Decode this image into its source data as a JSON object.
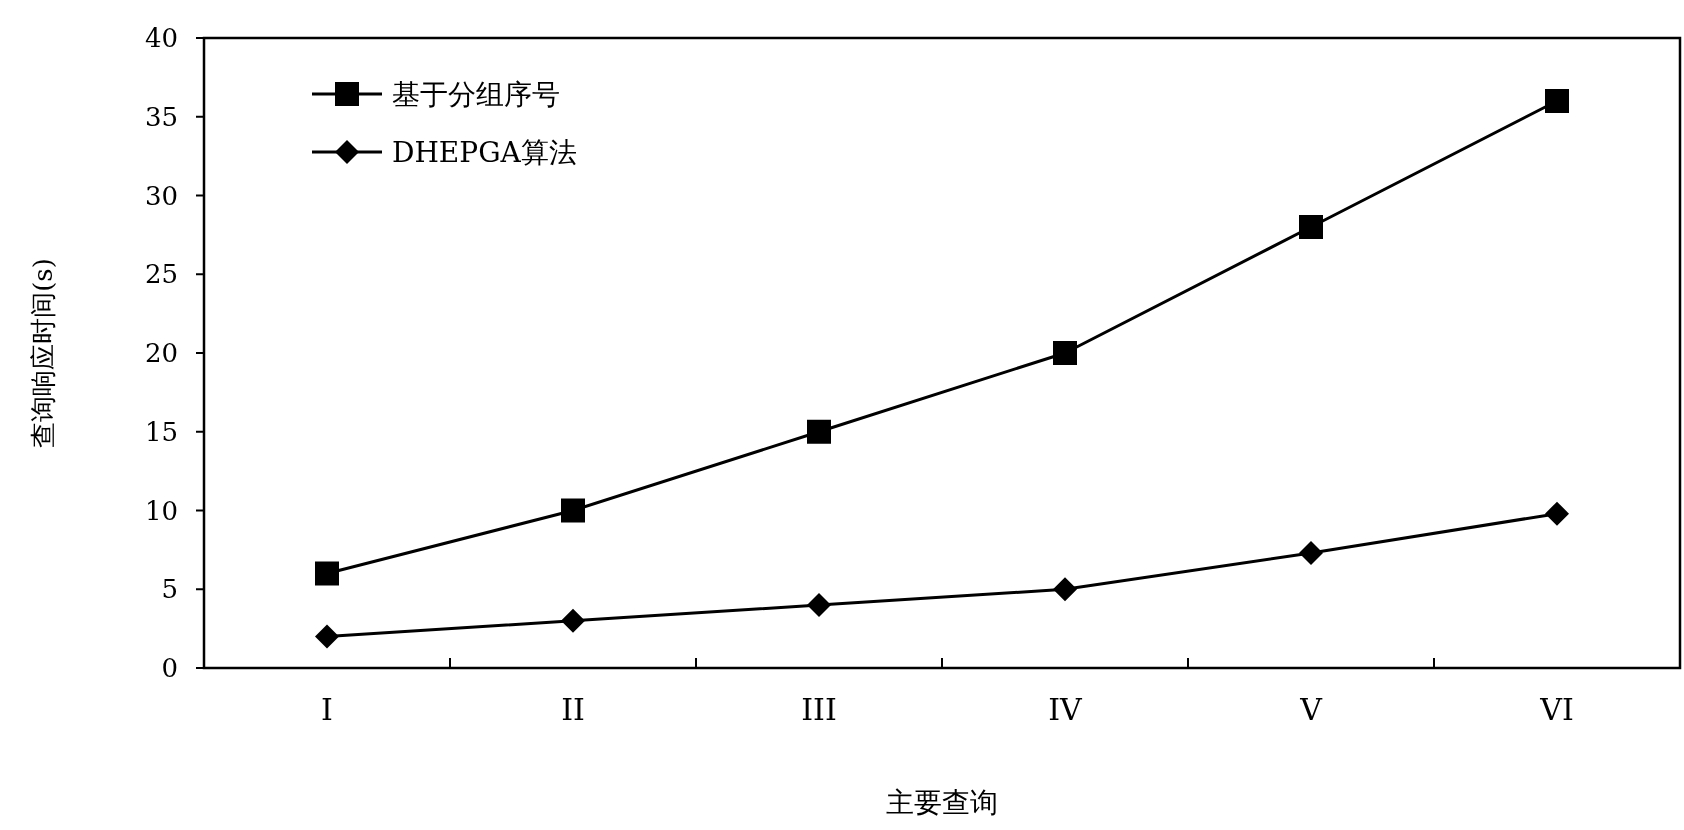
{
  "chart_data": {
    "type": "line",
    "xlabel": "主要查询",
    "ylabel": "查询响应时间(s)",
    "categories": [
      "I",
      "II",
      "III",
      "IV",
      "V",
      "VI"
    ],
    "series": [
      {
        "name": "基于分组序号",
        "color": "#000000",
        "marker": "square",
        "values": [
          6,
          10,
          15,
          20,
          28,
          36
        ]
      },
      {
        "name": "DHEPGA算法",
        "color": "#000000",
        "marker": "diamond",
        "values": [
          2,
          3,
          4,
          5,
          7.3,
          9.8
        ]
      }
    ],
    "ylim": [
      0,
      40
    ],
    "yticks": [
      0,
      5,
      10,
      15,
      20,
      25,
      30,
      35,
      40
    ],
    "legend": "top left",
    "line_style": "solid",
    "grid": false
  }
}
